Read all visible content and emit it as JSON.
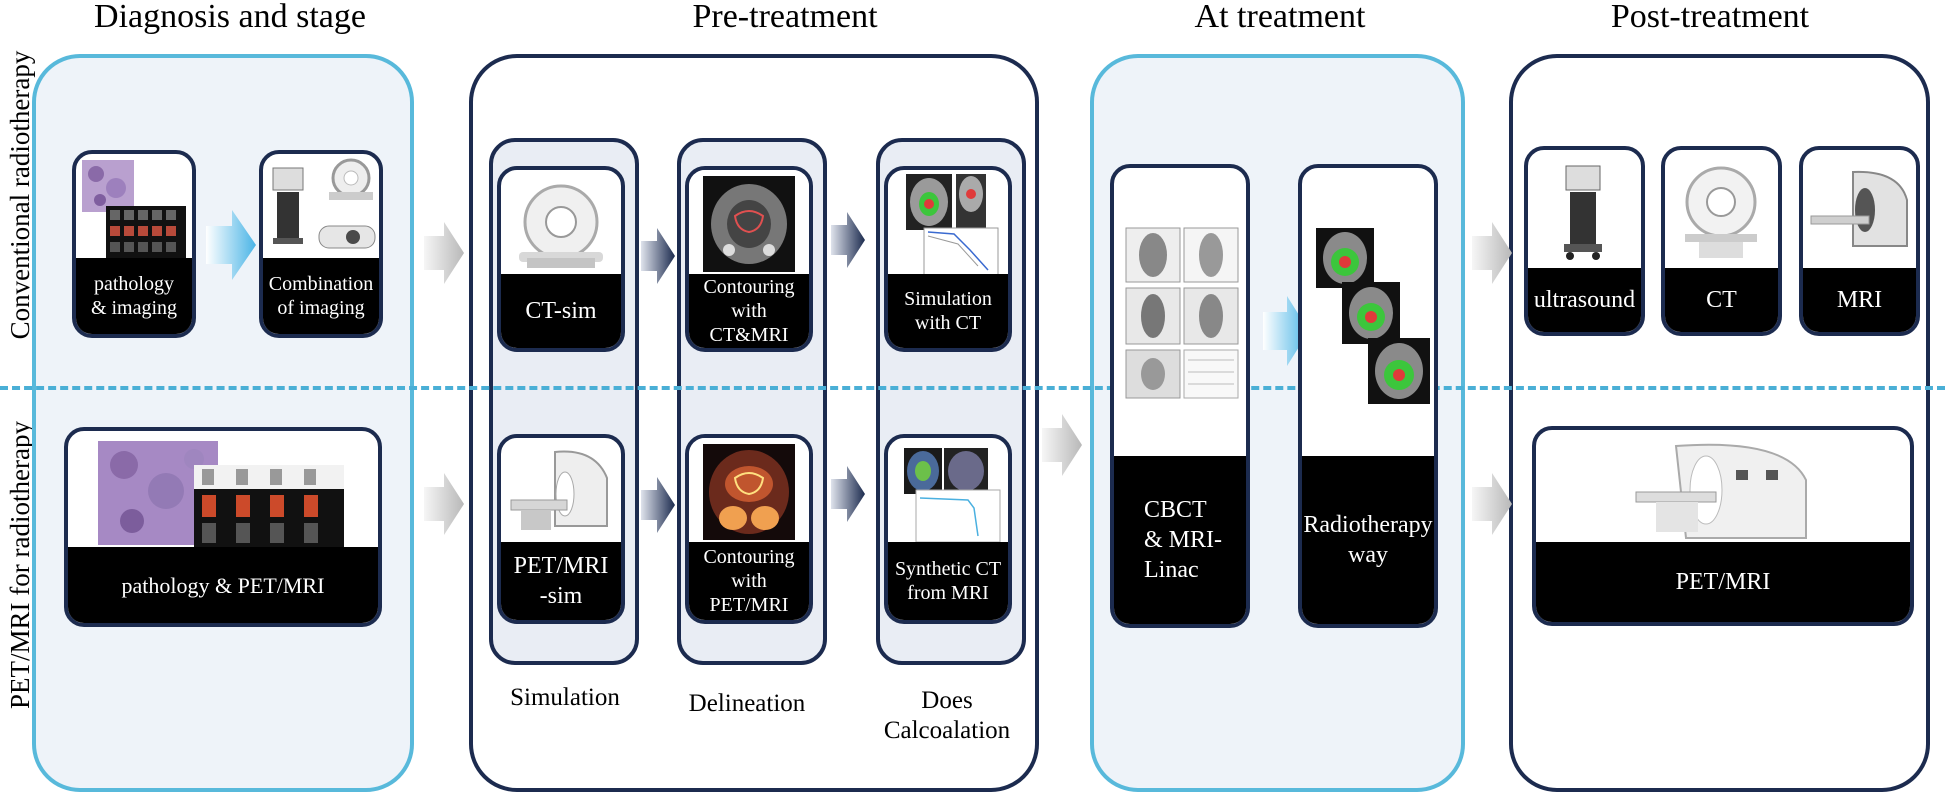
{
  "titles": {
    "diagnosis": "Diagnosis and stage",
    "pretreatment": "Pre-treatment",
    "attreatment": "At treatment",
    "posttreatment": "Post-treatment"
  },
  "rows": {
    "conventional": "Conventional radiotherapy",
    "petmri": "PET/MRI for radiotherapy"
  },
  "cards": {
    "pathology_imaging": "pathology\n& imaging",
    "combination_imaging": "Combination\nof imaging",
    "pathology_petmri": "pathology & PET/MRI",
    "ct_sim": "CT-sim",
    "petmri_sim": "PET/MRI\n-sim",
    "contouring_ctmri": "Contouring\nwith CT&MRI",
    "contouring_petmri": "Contouring\nwith PET/MRI",
    "simulation_ct": "Simulation\nwith CT",
    "synthetic_ct": "Synthetic CT\nfrom MRI",
    "cbct": "CBCT\n& MRI-\nLinac",
    "radiotherapy_way": "Radiotherapy\nway",
    "ultrasound": "ultrasound",
    "ct": "CT",
    "mri": "MRI",
    "post_petmri": "PET/MRI"
  },
  "captions": {
    "simulation": "Simulation",
    "delineation": "Delineation",
    "dose": "Does\nCalcoalation"
  },
  "colors": {
    "accent_blue": "#58b9db",
    "navy": "#1c2b4f",
    "panel_fill": "#eef3f9"
  }
}
